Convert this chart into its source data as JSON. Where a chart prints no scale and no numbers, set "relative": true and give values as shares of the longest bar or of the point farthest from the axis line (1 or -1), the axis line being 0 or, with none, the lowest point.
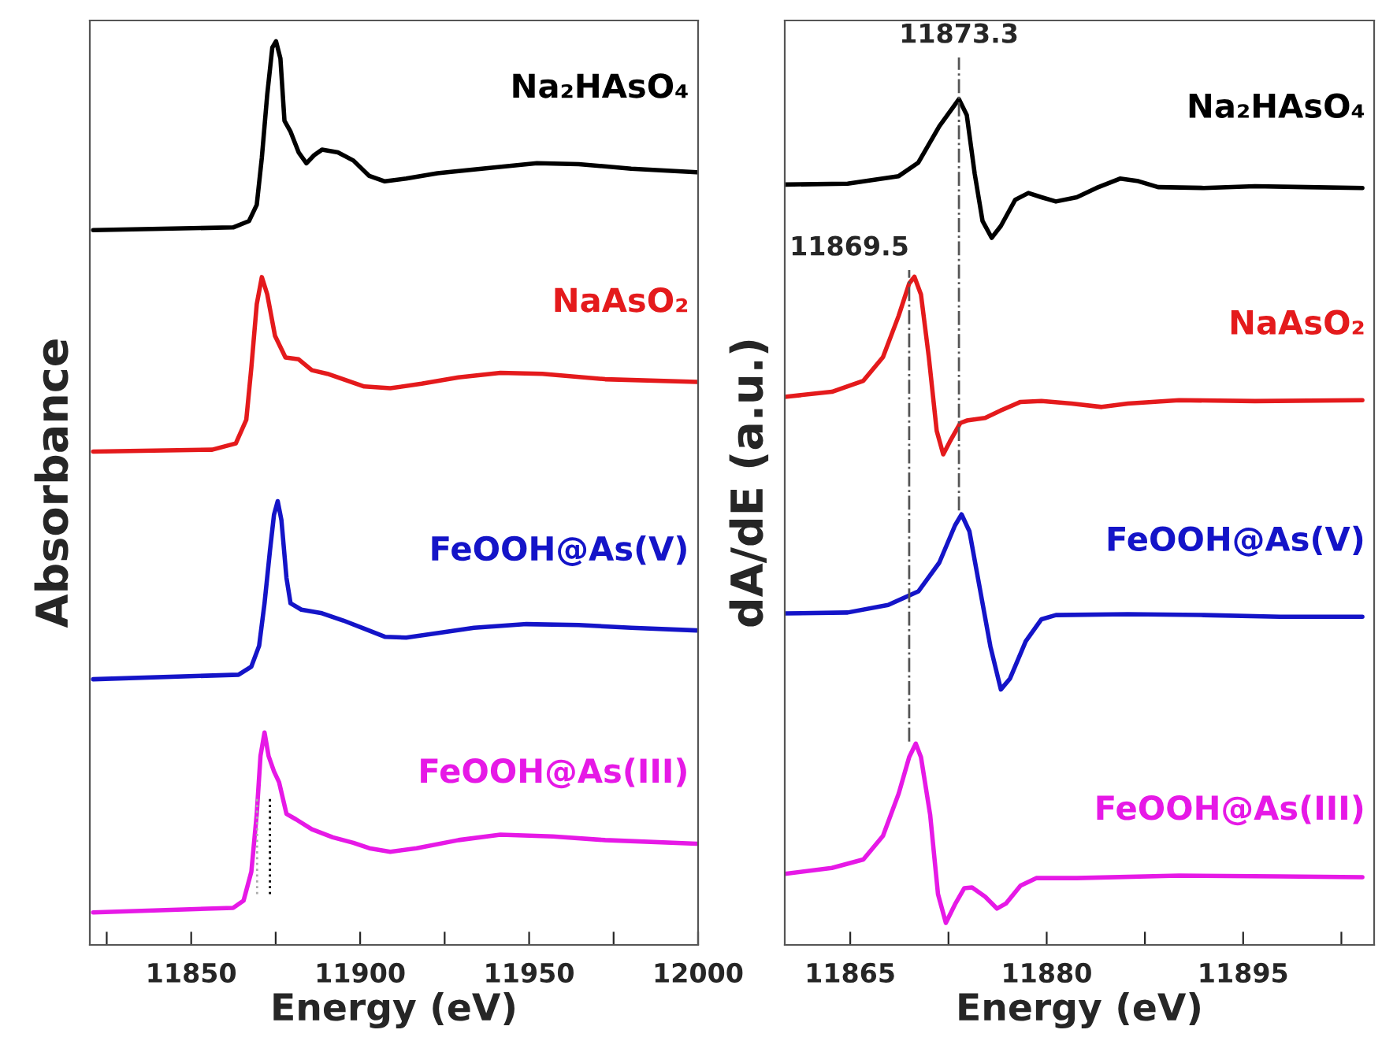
{
  "chart_data": [
    {
      "type": "line",
      "relative": true,
      "xlabel": "Energy (eV)",
      "ylabel": "Absorbance",
      "xlim": [
        11820,
        12000
      ],
      "xticks": [
        {
          "value": 11825,
          "label": null
        },
        11850,
        {
          "value": 11875,
          "label": null
        },
        11900,
        {
          "value": 11925,
          "label": null
        },
        11950,
        {
          "value": 11975,
          "label": null
        },
        12000
      ],
      "tick_labels": "x",
      "legend": false,
      "grid": false,
      "marker": "none",
      "line_style": "solid",
      "ref_lines": [
        {
          "axis": "x",
          "value": 11869.5,
          "color": "#aaaaaa",
          "line_style": "dotted"
        },
        {
          "axis": "x",
          "value": 11873.3,
          "color": "#000000",
          "line_style": "dotted"
        }
      ],
      "series": [
        {
          "name": "Na₂HAsO₄",
          "color": "#000000",
          "x": [
            11821,
            11862.4,
            11867.1,
            11869.4,
            11870.9,
            11872.5,
            11874.0,
            11875.1,
            11876.4,
            11877.6,
            11879.4,
            11881.8,
            11884.1,
            11886.4,
            11888.7,
            11893.4,
            11898.0,
            11902.7,
            11907.3,
            11913.6,
            11922.9,
            11933.7,
            11952.3,
            11964.7,
            11980.2,
            11999.6
          ],
          "values": [
            0.791,
            0.794,
            0.801,
            0.819,
            0.871,
            0.941,
            0.993,
            1.0,
            0.981,
            0.912,
            0.9,
            0.877,
            0.865,
            0.874,
            0.88,
            0.877,
            0.868,
            0.851,
            0.845,
            0.848,
            0.854,
            0.858,
            0.865,
            0.864,
            0.859,
            0.855
          ]
        },
        {
          "name": "NaAsO₂",
          "color": "#e41a1c",
          "x": [
            11821,
            11856.2,
            11863.2,
            11866.3,
            11867.8,
            11869.4,
            11870.9,
            11872.5,
            11874.8,
            11877.9,
            11881.8,
            11885.7,
            11890.3,
            11895.0,
            11901.2,
            11908.9,
            11918.2,
            11929.1,
            11941.5,
            11953.9,
            11972.5,
            11999.6
          ],
          "values": [
            0.546,
            0.548,
            0.555,
            0.581,
            0.639,
            0.709,
            0.739,
            0.72,
            0.674,
            0.65,
            0.648,
            0.636,
            0.632,
            0.626,
            0.618,
            0.616,
            0.621,
            0.628,
            0.633,
            0.632,
            0.626,
            0.623
          ]
        },
        {
          "name": "FeOOH@As(V)",
          "color": "#1414c8",
          "x": [
            11821,
            11864.0,
            11867.8,
            11870.1,
            11871.7,
            11873.3,
            11874.5,
            11875.6,
            11876.7,
            11878.2,
            11879.4,
            11882.6,
            11888.7,
            11895.0,
            11901.2,
            11907.3,
            11913.6,
            11922.9,
            11933.7,
            11949.2,
            11964.7,
            11980.2,
            11999.6
          ],
          "values": [
            0.294,
            0.299,
            0.308,
            0.331,
            0.378,
            0.436,
            0.476,
            0.491,
            0.47,
            0.406,
            0.378,
            0.371,
            0.367,
            0.359,
            0.35,
            0.341,
            0.34,
            0.345,
            0.351,
            0.355,
            0.354,
            0.351,
            0.348
          ]
        },
        {
          "name": "FeOOH@As(III)",
          "color": "#e619e6",
          "x": [
            11821,
            11862.4,
            11865.5,
            11867.8,
            11869.4,
            11870.5,
            11871.7,
            11872.9,
            11874.5,
            11876.0,
            11878.2,
            11881.0,
            11885.7,
            11891.9,
            11898.0,
            11902.7,
            11908.9,
            11916.7,
            11929.1,
            11941.5,
            11957.0,
            11972.5,
            11999.6
          ],
          "values": [
            0.036,
            0.041,
            0.049,
            0.081,
            0.145,
            0.209,
            0.235,
            0.209,
            0.192,
            0.18,
            0.145,
            0.139,
            0.128,
            0.119,
            0.113,
            0.107,
            0.103,
            0.107,
            0.116,
            0.122,
            0.12,
            0.116,
            0.112
          ]
        }
      ]
    },
    {
      "type": "line",
      "relative": true,
      "xlabel": "Energy (eV)",
      "ylabel": "dA/dE (a.u.)",
      "xlim": [
        11860,
        11905
      ],
      "xticks": [
        11865,
        {
          "value": 11872.5,
          "label": null
        },
        11880,
        {
          "value": 11887.5,
          "label": null
        },
        11895,
        {
          "value": 11902.5,
          "label": null
        }
      ],
      "tick_labels": "x",
      "legend": false,
      "grid": false,
      "marker": "none",
      "line_style": "solid",
      "ref_lines": [
        {
          "axis": "x",
          "value": 11869.5,
          "label": "11869.5",
          "color": "#555555",
          "line_style": "dashdot"
        },
        {
          "axis": "x",
          "value": 11873.3,
          "label": "11873.3",
          "color": "#555555",
          "line_style": "dashdot"
        }
      ],
      "series": [
        {
          "name": "Na₂HAsO₄",
          "color": "#000000",
          "x": [
            11860,
            11864.8,
            11868.7,
            11870.2,
            11871.8,
            11873.3,
            11873.9,
            11874.5,
            11875.1,
            11875.8,
            11876.5,
            11877.6,
            11878.6,
            11879.6,
            11880.7,
            11882.3,
            11883.8,
            11885.6,
            11887.0,
            11888.5,
            11892.0,
            11895.9,
            11899.8,
            11904.1
          ],
          "values": [
            0.899,
            0.9,
            0.909,
            0.925,
            0.968,
            1.0,
            0.981,
            0.912,
            0.856,
            0.836,
            0.85,
            0.881,
            0.889,
            0.884,
            0.879,
            0.884,
            0.895,
            0.906,
            0.903,
            0.896,
            0.895,
            0.897,
            0.896,
            0.895
          ]
        },
        {
          "name": "NaAsO₂",
          "color": "#e41a1c",
          "x": [
            11860,
            11863.6,
            11866.0,
            11867.5,
            11868.7,
            11869.5,
            11869.9,
            11870.4,
            11871.0,
            11871.6,
            11872.1,
            11872.6,
            11873.4,
            11873.9,
            11875.3,
            11876.5,
            11878.0,
            11879.6,
            11881.9,
            11884.2,
            11886.2,
            11890.1,
            11895.9,
            11904.1
          ],
          "values": [
            0.648,
            0.654,
            0.667,
            0.695,
            0.744,
            0.782,
            0.79,
            0.769,
            0.695,
            0.608,
            0.58,
            0.595,
            0.617,
            0.62,
            0.623,
            0.632,
            0.642,
            0.643,
            0.64,
            0.636,
            0.64,
            0.644,
            0.643,
            0.644
          ]
        },
        {
          "name": "FeOOH@As(V)",
          "color": "#1414c8",
          "x": [
            11860,
            11864.8,
            11867.9,
            11870.2,
            11871.8,
            11873.0,
            11873.5,
            11874.1,
            11874.9,
            11875.7,
            11876.5,
            11877.2,
            11878.4,
            11879.6,
            11880.7,
            11886.2,
            11892.0,
            11897.8,
            11904.1
          ],
          "values": [
            0.392,
            0.393,
            0.402,
            0.418,
            0.452,
            0.496,
            0.509,
            0.489,
            0.421,
            0.353,
            0.302,
            0.315,
            0.359,
            0.385,
            0.39,
            0.391,
            0.39,
            0.388,
            0.388
          ]
        },
        {
          "name": "FeOOH@As(III)",
          "color": "#e619e6",
          "x": [
            11860,
            11863.6,
            11866.0,
            11867.5,
            11868.7,
            11869.5,
            11870.0,
            11870.4,
            11871.1,
            11871.7,
            11872.3,
            11873.0,
            11873.7,
            11874.3,
            11875.3,
            11876.2,
            11876.9,
            11878.0,
            11879.2,
            11882.3,
            11890.1,
            11897.8,
            11904.1
          ],
          "values": [
            0.084,
            0.091,
            0.101,
            0.129,
            0.179,
            0.222,
            0.238,
            0.222,
            0.154,
            0.06,
            0.026,
            0.048,
            0.067,
            0.068,
            0.057,
            0.043,
            0.049,
            0.07,
            0.079,
            0.079,
            0.082,
            0.081,
            0.08
          ]
        }
      ]
    }
  ]
}
